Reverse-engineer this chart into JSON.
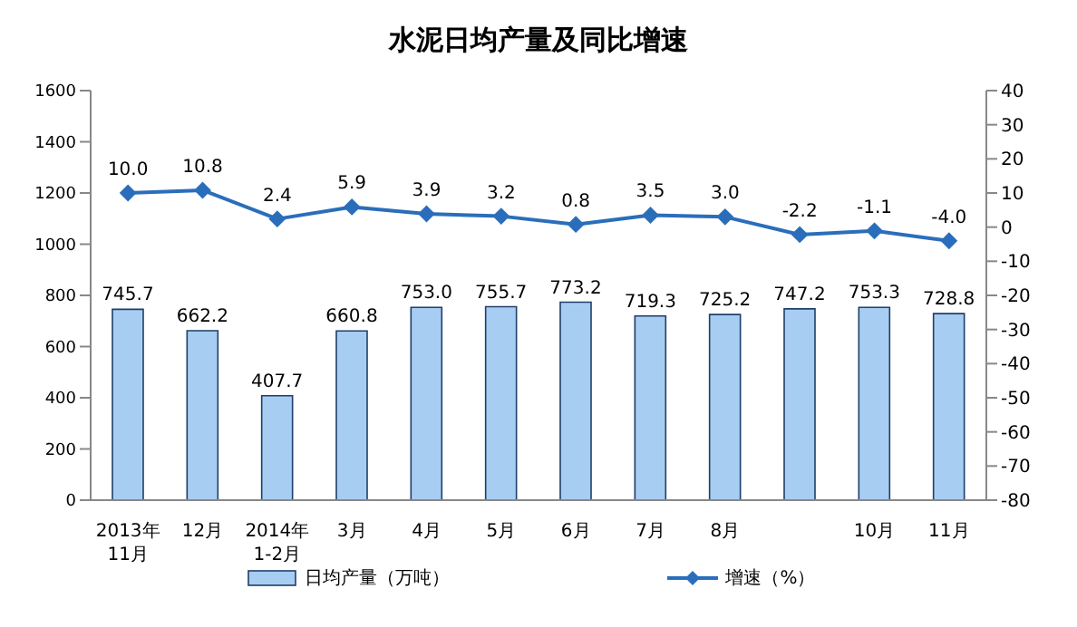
{
  "chart_data": {
    "type": "bar",
    "title": "水泥日均产量及同比增速",
    "categories": [
      "2013年\n11月",
      "12月",
      "2014年\n1-2月",
      "3月",
      "4月",
      "5月",
      "6月",
      "7月",
      "8月",
      null,
      "10月",
      "11月"
    ],
    "series": [
      {
        "name": "日均产量（万吨）",
        "color": "#a8cdf2",
        "values": [
          745.7,
          662.2,
          407.7,
          660.8,
          753.0,
          755.7,
          773.2,
          719.3,
          725.2,
          747.2,
          753.3,
          728.8
        ],
        "value_labels": [
          "745.7",
          "662.2",
          "407.7",
          "660.8",
          "753.0",
          "755.7",
          "773.2",
          "719.3",
          "725.2",
          "747.2",
          "753.3",
          "728.8"
        ]
      },
      {
        "name": "增速（%）",
        "type": "line",
        "axis": "y2",
        "color": "#2a6ebb",
        "marker": "diamond",
        "values": [
          10.0,
          10.8,
          2.4,
          5.9,
          3.9,
          3.2,
          0.8,
          3.5,
          3.0,
          -2.2,
          -1.1,
          -4.0
        ],
        "value_labels": [
          "10.0",
          "10.8",
          "2.4",
          "5.9",
          "3.9",
          "3.2",
          "0.8",
          "3.5",
          "3.0",
          "-2.2",
          "-1.1",
          "-4.0"
        ]
      }
    ],
    "ylim": [
      0,
      1600
    ],
    "yticks": [
      0,
      200,
      400,
      600,
      800,
      1000,
      1200,
      1400,
      1600
    ],
    "y2lim": [
      -80,
      40
    ],
    "y2ticks": [
      -80,
      -70,
      -60,
      -50,
      -40,
      -30,
      -20,
      -10,
      0,
      10,
      20,
      30,
      40
    ],
    "legend": "bottom"
  }
}
